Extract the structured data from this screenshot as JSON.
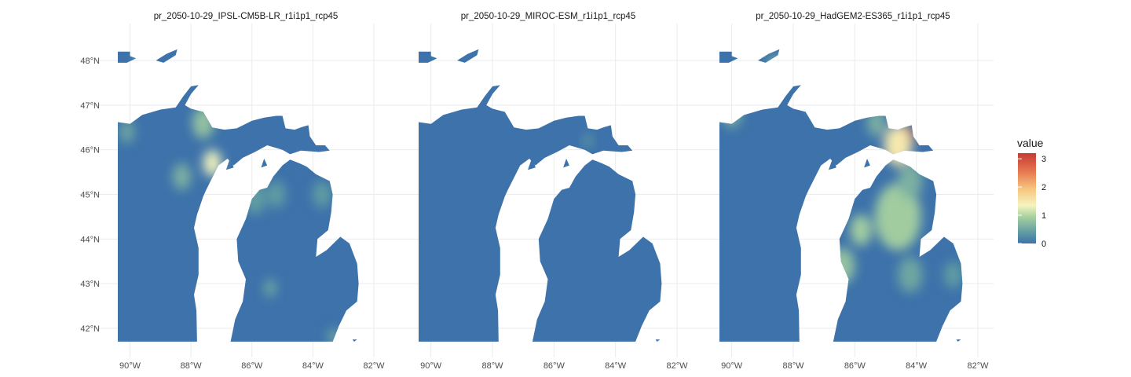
{
  "chart_data": [
    {
      "type": "heatmap",
      "title": "pr_2050-10-29_IPSL-CM5B-LR_r1i1p1_rcp45",
      "xlabel": "",
      "ylabel": "",
      "xlim": [
        -90.4,
        -82.0
      ],
      "ylim": [
        41.7,
        48.3
      ],
      "x_ticks": [
        -90,
        -88,
        -86,
        -84,
        -82
      ],
      "y_ticks": [
        42,
        43,
        44,
        45,
        46,
        47,
        48
      ],
      "hotspots": [
        {
          "lon": -87.6,
          "lat": 46.6,
          "value": 0.8,
          "radius": 0.35
        },
        {
          "lon": -87.3,
          "lat": 45.7,
          "value": 1.3,
          "radius": 0.3
        },
        {
          "lon": -88.3,
          "lat": 45.4,
          "value": 0.6,
          "radius": 0.3
        },
        {
          "lon": -90.1,
          "lat": 46.4,
          "value": 0.5,
          "radius": 0.25
        },
        {
          "lon": -89.6,
          "lat": 48.1,
          "value": 0.5,
          "radius": 0.2
        },
        {
          "lon": -85.9,
          "lat": 44.9,
          "value": 0.4,
          "radius": 0.35
        },
        {
          "lon": -85.2,
          "lat": 45.0,
          "value": 0.4,
          "radius": 0.3
        },
        {
          "lon": -85.4,
          "lat": 42.9,
          "value": 0.5,
          "radius": 0.2
        },
        {
          "lon": -83.7,
          "lat": 45.0,
          "value": 0.4,
          "radius": 0.3
        },
        {
          "lon": -83.3,
          "lat": 41.8,
          "value": 0.5,
          "radius": 0.2
        }
      ],
      "grid": true
    },
    {
      "type": "heatmap",
      "title": "pr_2050-10-29_MIROC-ESM_r1i1p1_rcp45",
      "xlabel": "",
      "ylabel": "",
      "xlim": [
        -90.4,
        -82.0
      ],
      "ylim": [
        41.7,
        48.3
      ],
      "x_ticks": [
        -90,
        -88,
        -86,
        -84,
        -82
      ],
      "y_ticks": [
        42,
        43,
        44,
        45,
        46,
        47,
        48
      ],
      "hotspots": [
        {
          "lon": -84.9,
          "lat": 46.2,
          "value": 0.4,
          "radius": 0.15
        }
      ],
      "grid": true
    },
    {
      "type": "heatmap",
      "title": "pr_2050-10-29_HadGEM2-ES365_r1i1p1_rcp45",
      "xlabel": "",
      "ylabel": "",
      "xlim": [
        -90.4,
        -82.0
      ],
      "ylim": [
        41.7,
        48.3
      ],
      "x_ticks": [
        -90,
        -88,
        -86,
        -84,
        -82
      ],
      "y_ticks": [
        42,
        43,
        44,
        45,
        46,
        47,
        48
      ],
      "hotspots": [
        {
          "lon": -84.3,
          "lat": 46.3,
          "value": 3.2,
          "radius": 0.25
        },
        {
          "lon": -84.6,
          "lat": 46.1,
          "value": 1.5,
          "radius": 0.45
        },
        {
          "lon": -84.6,
          "lat": 44.5,
          "value": 0.9,
          "radius": 0.75
        },
        {
          "lon": -85.8,
          "lat": 44.2,
          "value": 0.9,
          "radius": 0.35
        },
        {
          "lon": -86.4,
          "lat": 43.4,
          "value": 0.8,
          "radius": 0.4
        },
        {
          "lon": -84.2,
          "lat": 45.3,
          "value": 0.6,
          "radius": 0.4
        },
        {
          "lon": -90.0,
          "lat": 46.8,
          "value": 0.6,
          "radius": 0.3
        },
        {
          "lon": -87.2,
          "lat": 47.1,
          "value": 0.5,
          "radius": 0.3
        },
        {
          "lon": -85.3,
          "lat": 46.6,
          "value": 0.6,
          "radius": 0.3
        },
        {
          "lon": -88.6,
          "lat": 47.9,
          "value": 0.5,
          "radius": 0.25
        },
        {
          "lon": -84.2,
          "lat": 43.2,
          "value": 0.5,
          "radius": 0.4
        },
        {
          "lon": -82.8,
          "lat": 43.2,
          "value": 0.4,
          "radius": 0.3
        }
      ],
      "grid": true
    }
  ],
  "shared": {
    "x_tick_labels": [
      "90°W",
      "88°W",
      "86°W",
      "84°W",
      "82°W"
    ],
    "y_tick_labels": [
      "42°N",
      "43°N",
      "44°N",
      "45°N",
      "46°N",
      "47°N",
      "48°N"
    ],
    "base_value": 0
  },
  "legend": {
    "title": "value",
    "range": [
      0,
      3.2
    ],
    "ticks": [
      0,
      1,
      2,
      3
    ],
    "tick_labels": [
      "0",
      "1",
      "2",
      "3"
    ],
    "placement": "right",
    "colors": [
      "#3d72aa",
      "#5f9ba3",
      "#a9d2a0",
      "#f5f4c0",
      "#f7c77f",
      "#e6764f",
      "#c73a34"
    ],
    "color_stops": [
      0,
      0.12,
      0.3,
      0.42,
      0.6,
      0.8,
      1
    ]
  },
  "colors": {
    "land_base": "#3d72aa",
    "grid": "#ebebeb",
    "axis_text": "#4d4d4d"
  }
}
